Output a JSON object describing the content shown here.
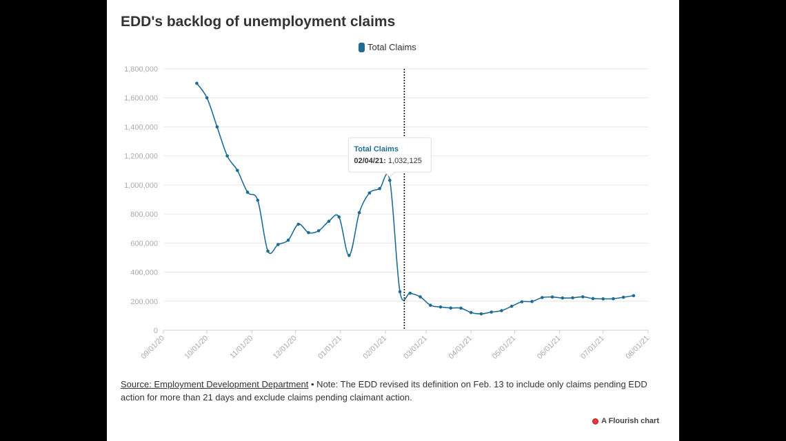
{
  "colors": {
    "series": "#1e6b94",
    "grid": "#e6e6e6",
    "axis_text": "#aaaaaa",
    "text": "#333333",
    "flourish_mark": "#d32f2f"
  },
  "footer": {
    "source_link": "Source: Employment Development Department",
    "note": " • Note: The EDD revised its definition on Feb. 13 to include only claims pending EDD action for more than 21 days and exclude claims pending claimant action."
  },
  "branding": {
    "flourish_label": "A Flourish chart",
    "flourish_icon": "flourish-logo-icon"
  },
  "chart_data": {
    "type": "line",
    "title": "EDD's backlog of unemployment claims",
    "legend": [
      "Total Claims"
    ],
    "legend_position": "top-center",
    "grid": true,
    "ylim": [
      0,
      1800000
    ],
    "yticks": [
      0,
      200000,
      400000,
      600000,
      800000,
      1000000,
      1200000,
      1400000,
      1600000,
      1800000
    ],
    "ytick_labels": [
      "0",
      "200,000",
      "400,000",
      "600,000",
      "800,000",
      "1,000,000",
      "1,200,000",
      "1,400,000",
      "1,600,000",
      "1,800,000"
    ],
    "xlim": [
      "2020-09-01",
      "2021-08-01"
    ],
    "xticks": [
      "2020-09-01",
      "2020-10-01",
      "2020-11-01",
      "2020-12-01",
      "2021-01-01",
      "2021-02-01",
      "2021-03-01",
      "2021-04-01",
      "2021-05-01",
      "2021-06-01",
      "2021-07-01",
      "2021-08-01"
    ],
    "xtick_labels": [
      "09/01/20",
      "10/01/20",
      "11/01/20",
      "12/01/20",
      "01/01/21",
      "02/01/21",
      "03/01/21",
      "04/01/21",
      "05/01/21",
      "06/01/21",
      "07/01/21",
      "08/01/21"
    ],
    "series": [
      {
        "name": "Total Claims",
        "x": [
          "2020-09-24",
          "2020-10-01",
          "2020-10-08",
          "2020-10-15",
          "2020-10-22",
          "2020-10-29",
          "2020-11-05",
          "2020-11-12",
          "2020-11-19",
          "2020-11-26",
          "2020-12-03",
          "2020-12-10",
          "2020-12-17",
          "2020-12-24",
          "2020-12-31",
          "2021-01-07",
          "2021-01-14",
          "2021-01-21",
          "2021-01-28",
          "2021-02-04",
          "2021-02-11",
          "2021-02-18",
          "2021-02-25",
          "2021-03-04",
          "2021-03-11",
          "2021-03-18",
          "2021-03-25",
          "2021-04-01",
          "2021-04-08",
          "2021-04-15",
          "2021-04-22",
          "2021-04-29",
          "2021-05-06",
          "2021-05-13",
          "2021-05-20",
          "2021-05-27",
          "2021-06-03",
          "2021-06-10",
          "2021-06-17",
          "2021-06-24",
          "2021-07-01",
          "2021-07-08",
          "2021-07-15",
          "2021-07-22"
        ],
        "y": [
          1700000,
          1600000,
          1400000,
          1200000,
          1100000,
          950000,
          895000,
          545000,
          590000,
          620000,
          730000,
          672000,
          685000,
          750000,
          780000,
          515000,
          810000,
          945000,
          975000,
          1032125,
          265000,
          255000,
          230000,
          172000,
          160000,
          153000,
          152000,
          122000,
          113000,
          125000,
          135000,
          165000,
          196000,
          198000,
          225000,
          229000,
          222000,
          223000,
          230000,
          218000,
          216000,
          217000,
          227000,
          238000
        ]
      }
    ],
    "annotations": [
      {
        "type": "vertical-dotted-line",
        "x": "2021-02-14"
      }
    ],
    "tooltip": {
      "series": "Total Claims",
      "x_label": "02/04/21:",
      "value_label": "1,032,125",
      "x": "2021-02-04",
      "y": 1032125
    }
  }
}
